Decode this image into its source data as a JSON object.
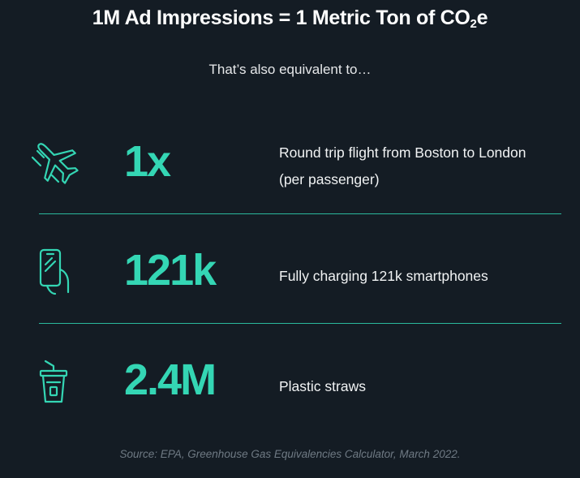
{
  "title": {
    "main": "1M Ad Impressions = 1 Metric Ton of CO",
    "sub": "2",
    "suffix": "e"
  },
  "subtitle": "That’s also equivalent to…",
  "accent_color": "#34d6b4",
  "background_color": "#141c24",
  "items": [
    {
      "icon": "airplane-icon",
      "value": "1x",
      "description": "Round trip flight from Boston to London (per passenger)"
    },
    {
      "icon": "smartphone-hand-icon",
      "value": "121k",
      "description": "Fully charging 121k smartphones"
    },
    {
      "icon": "cup-straw-icon",
      "value": "2.4M",
      "description": "Plastic straws"
    }
  ],
  "source": "Source: EPA, Greenhouse Gas Equivalencies Calculator, March 2022."
}
